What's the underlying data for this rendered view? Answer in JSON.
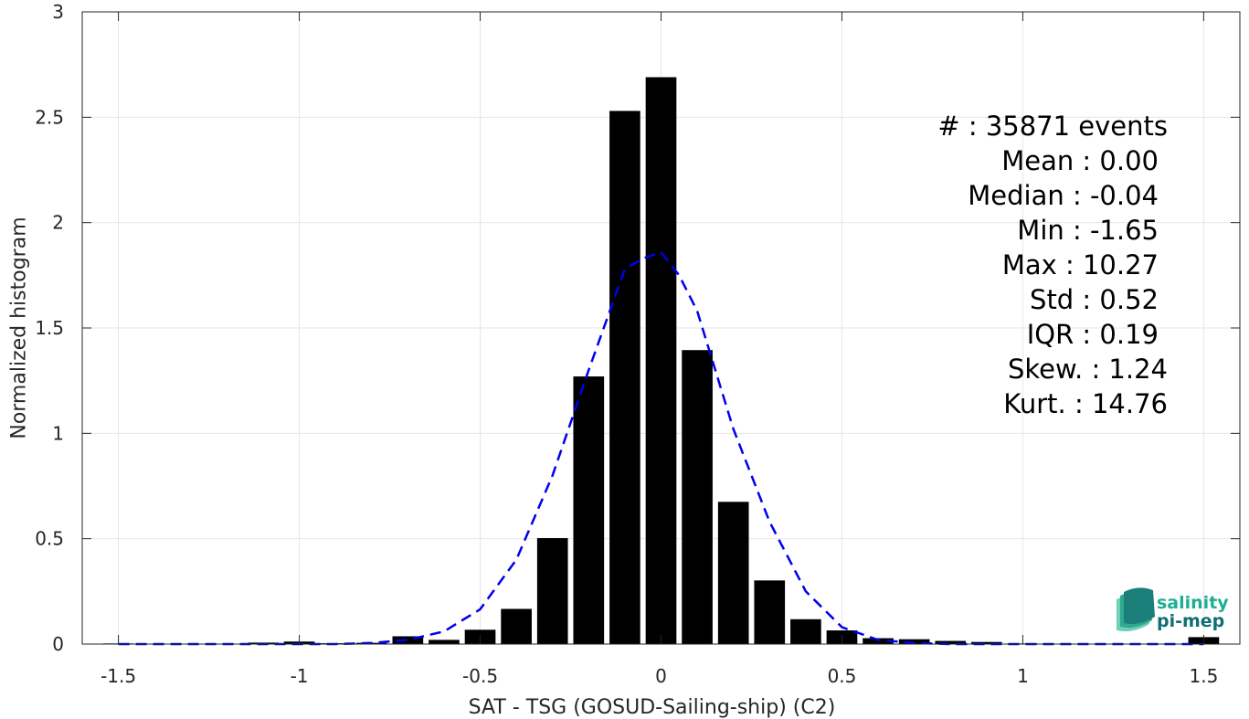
{
  "chart_data": {
    "type": "bar",
    "xlabel": "SAT - TSG (GOSUD-Sailing-ship) (C2)",
    "ylabel": "Normalized histogram",
    "xlim": [
      -1.6,
      1.6
    ],
    "ylim": [
      0,
      3
    ],
    "xticks": [
      "-1.5",
      "-1",
      "-0.5",
      "0",
      "0.5",
      "1",
      "1.5"
    ],
    "xtick_values": [
      -1.5,
      -1,
      -0.5,
      0,
      0.5,
      1,
      1.5
    ],
    "yticks": [
      "0",
      "0.5",
      "1",
      "1.5",
      "2",
      "2.5",
      "3"
    ],
    "ytick_values": [
      0,
      0.5,
      1,
      1.5,
      2,
      2.5,
      3
    ],
    "grid": true,
    "bar_color": "#000000",
    "fit_color": "#0000ee",
    "bars": {
      "x": [
        -1.5,
        -1.4,
        -1.3,
        -1.2,
        -1.1,
        -1.0,
        -0.9,
        -0.8,
        -0.7,
        -0.6,
        -0.5,
        -0.4,
        -0.3,
        -0.2,
        -0.1,
        0.0,
        0.1,
        0.2,
        0.3,
        0.4,
        0.5,
        0.6,
        0.7,
        0.8,
        0.9,
        1.0,
        1.1,
        1.2,
        1.3,
        1.4,
        1.5
      ],
      "values": [
        0.003,
        0,
        0,
        0,
        0.007,
        0.012,
        0.004,
        0.006,
        0.037,
        0.02,
        0.068,
        0.167,
        0.503,
        1.27,
        2.53,
        2.69,
        1.395,
        0.675,
        0.302,
        0.118,
        0.065,
        0.028,
        0.023,
        0.015,
        0.01,
        0.003,
        0.002,
        0.002,
        0.002,
        0.002,
        0.033
      ]
    },
    "fit": {
      "style": "dashed",
      "x": [
        -1.5,
        -1.4,
        -1.3,
        -1.2,
        -1.1,
        -1.0,
        -0.9,
        -0.8,
        -0.7,
        -0.6,
        -0.5,
        -0.4,
        -0.3,
        -0.2,
        -0.1,
        -0.05,
        0.0,
        0.05,
        0.1,
        0.2,
        0.3,
        0.4,
        0.5,
        0.6,
        0.7,
        0.8,
        0.9,
        1.0,
        1.1,
        1.2,
        1.3,
        1.4,
        1.5
      ],
      "y": [
        0,
        0,
        0,
        0,
        0,
        0,
        0,
        0.005,
        0.02,
        0.06,
        0.165,
        0.4,
        0.8,
        1.3,
        1.78,
        1.83,
        1.86,
        1.75,
        1.58,
        1.02,
        0.58,
        0.25,
        0.08,
        0.02,
        0.005,
        0,
        0,
        0,
        0,
        0,
        0,
        0,
        0
      ]
    },
    "stats": [
      {
        "label": "#  : 35871 events"
      },
      {
        "label": "Mean : 0.00"
      },
      {
        "label": "Median : -0.04"
      },
      {
        "label": "Min : -1.65"
      },
      {
        "label": "Max : 10.27"
      },
      {
        "label": "Std : 0.52"
      },
      {
        "label": "IQR : 0.19"
      },
      {
        "label": "Skew. : 1.24"
      },
      {
        "label": "Kurt. : 14.76"
      }
    ]
  },
  "logo": {
    "line1": "salinity",
    "line2": "pi-mep",
    "color1": "#1fae94",
    "color2": "#0f6f72"
  }
}
